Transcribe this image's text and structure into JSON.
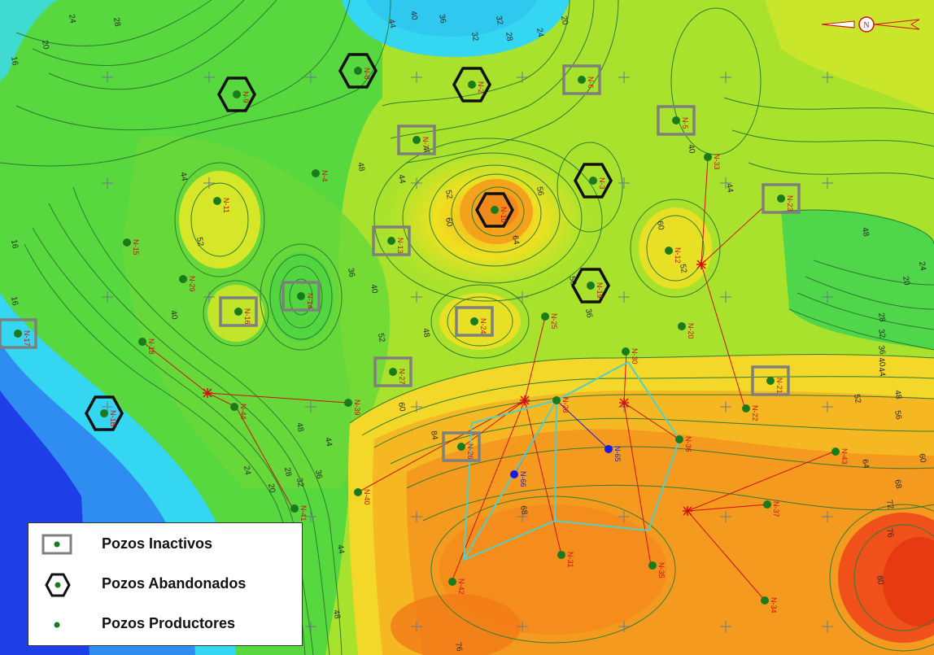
{
  "map": {
    "colors": {
      "deep_blue": "#1e3fe8",
      "blue": "#2f8cf0",
      "cyan": "#35d6f2",
      "green": "#3fd84a",
      "yellow_green": "#b8e82a",
      "yellow": "#f0e020",
      "light_orange": "#f7b020",
      "orange": "#f48a1a",
      "red_orange": "#f0501a",
      "contour_line": "#2e7d32",
      "contour_label": "#2a2a2a",
      "well_label": "#cc1111",
      "inactive_box": "#7f7f7f",
      "abandoned_hex": "#111111",
      "producer_dot": "#1b7a1b",
      "injector_dot": "#1a1ae0",
      "pipeline": "#d01010",
      "injector_line": "#1a1acc",
      "pattern_outline": "#4fd0c8"
    },
    "compass_label": "N",
    "wells": [
      {
        "name": "N-9",
        "type": "abandoned"
      },
      {
        "name": "N-8",
        "type": "abandoned"
      },
      {
        "name": "N-2",
        "type": "abandoned"
      },
      {
        "name": "N-6",
        "type": "inactive"
      },
      {
        "name": "N-5",
        "type": "inactive"
      },
      {
        "name": "N-7",
        "type": "inactive"
      },
      {
        "name": "N-33",
        "type": "producer"
      },
      {
        "name": "N-3",
        "type": "abandoned"
      },
      {
        "name": "N-23",
        "type": "inactive"
      },
      {
        "name": "N-4",
        "type": "producer"
      },
      {
        "name": "N-11",
        "type": "producer"
      },
      {
        "name": "N-10",
        "type": "abandoned"
      },
      {
        "name": "N-15",
        "type": "producer"
      },
      {
        "name": "N-13",
        "type": "inactive"
      },
      {
        "name": "N-12",
        "type": "producer"
      },
      {
        "name": "N-29",
        "type": "producer"
      },
      {
        "name": "N-14",
        "type": "inactive"
      },
      {
        "name": "N-19",
        "type": "abandoned"
      },
      {
        "name": "N-16",
        "type": "inactive"
      },
      {
        "name": "N-24",
        "type": "inactive"
      },
      {
        "name": "N-25",
        "type": "producer"
      },
      {
        "name": "N-20",
        "type": "producer"
      },
      {
        "name": "N-17",
        "type": "inactive"
      },
      {
        "name": "N-18",
        "type": "producer"
      },
      {
        "name": "N-27",
        "type": "inactive"
      },
      {
        "name": "N-30",
        "type": "producer"
      },
      {
        "name": "N-21",
        "type": "inactive"
      },
      {
        "name": "N-22",
        "type": "producer"
      },
      {
        "name": "N-44",
        "type": "producer"
      },
      {
        "name": "N-39",
        "type": "producer"
      },
      {
        "name": "N-28",
        "type": "producer"
      },
      {
        "name": "N-26",
        "type": "inactive"
      },
      {
        "name": "N-65",
        "type": "injector"
      },
      {
        "name": "N-66",
        "type": "injector"
      },
      {
        "name": "N-36",
        "type": "producer"
      },
      {
        "name": "N-43",
        "type": "producer"
      },
      {
        "name": "N-40",
        "type": "producer"
      },
      {
        "name": "N-41",
        "type": "producer"
      },
      {
        "name": "N-37",
        "type": "producer"
      },
      {
        "name": "N-31",
        "type": "producer"
      },
      {
        "name": "N-35",
        "type": "producer"
      },
      {
        "name": "N-42",
        "type": "producer"
      },
      {
        "name": "N-34",
        "type": "producer"
      },
      {
        "name": "N-1B",
        "type": "abandoned"
      }
    ],
    "contour_labels": [
      "16",
      "20",
      "24",
      "28",
      "32",
      "36",
      "40",
      "44",
      "48",
      "52",
      "56",
      "60",
      "64",
      "68",
      "72",
      "76",
      "80",
      "84"
    ]
  },
  "legend": {
    "inactive": "Pozos Inactivos",
    "abandoned": "Pozos Abandonados",
    "producer": "Pozos Productores"
  }
}
